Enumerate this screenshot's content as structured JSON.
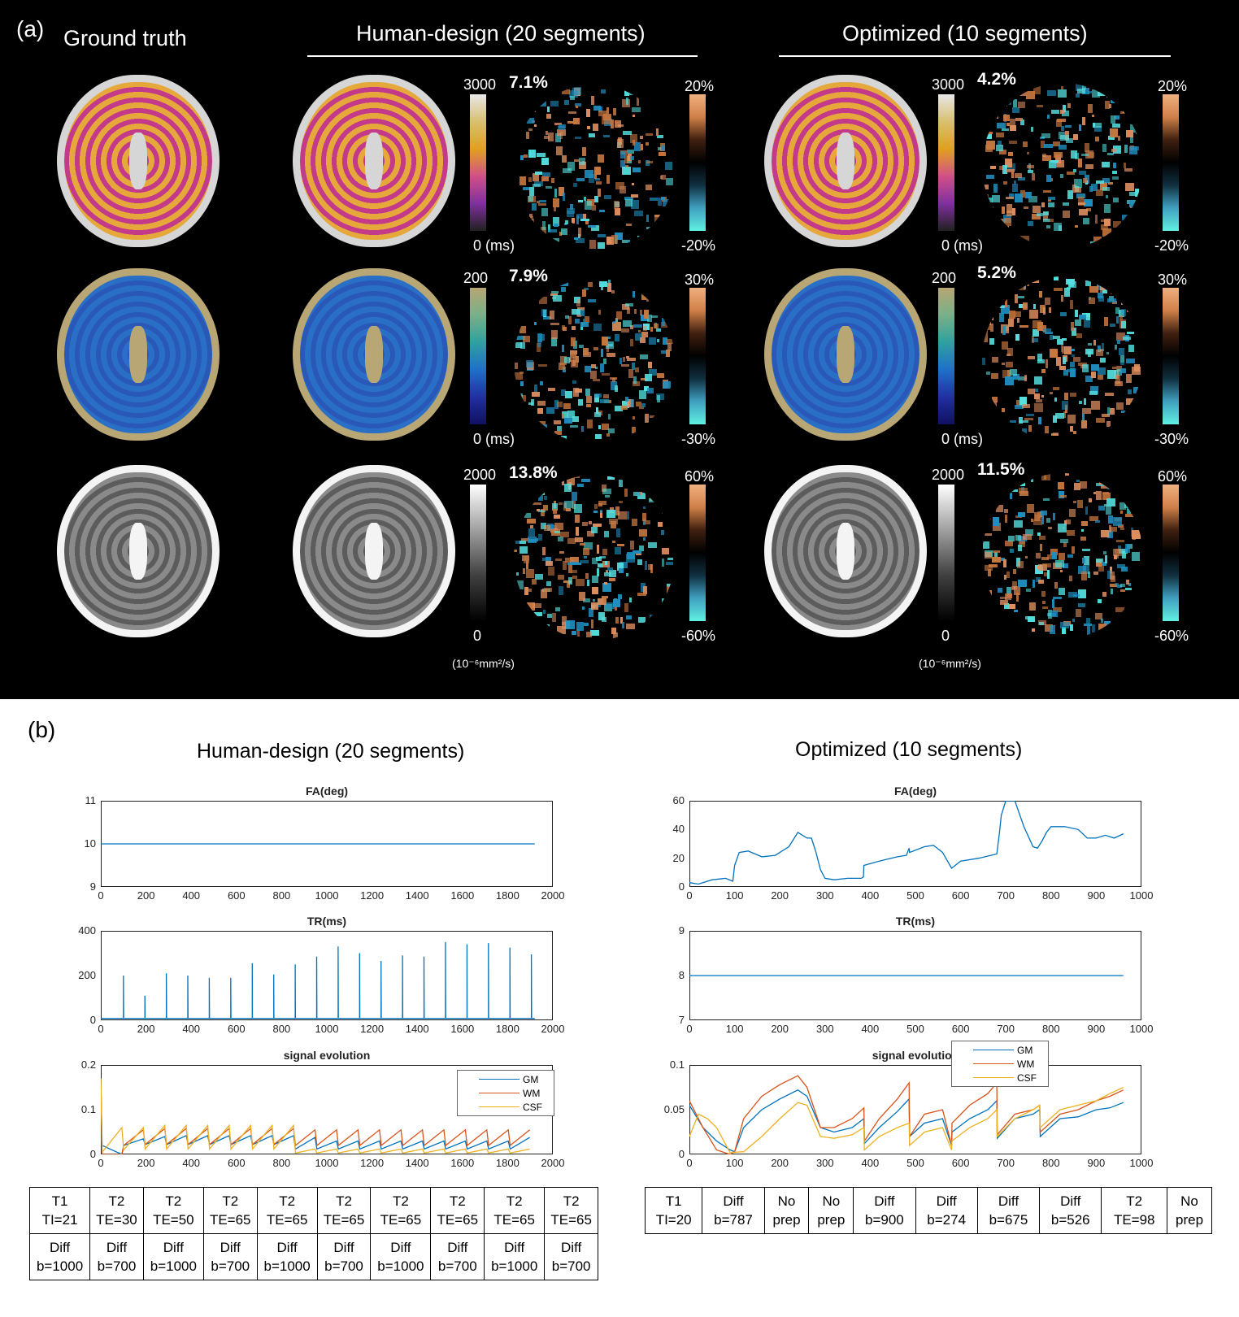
{
  "panel_a": {
    "label": "(a)",
    "ground_truth_title": "Ground truth",
    "human_title": "Human-design (20 segments)",
    "optimized_title": "Optimized (10 segments)",
    "rows": [
      {
        "map_colors": [
          "#d6d6d6",
          "#e6a83a",
          "#c43a8a"
        ],
        "cb_max": "3000",
        "cb_min": "0 (ms)",
        "human_err": "7.1%",
        "opt_err": "4.2%",
        "err_max": "20%",
        "err_min": "-20%"
      },
      {
        "map_colors": [
          "#b8a674",
          "#2a6fc6",
          "#2a58b8"
        ],
        "cb_max": "200",
        "cb_min": "0 (ms)",
        "human_err": "7.9%",
        "opt_err": "5.2%",
        "err_max": "30%",
        "err_min": "-30%"
      },
      {
        "map_colors": [
          "#f4f4f4",
          "#8a8a8a",
          "#5c5c5c"
        ],
        "cb_max": "2000",
        "cb_min": "0",
        "human_err": "13.8%",
        "opt_err": "11.5%",
        "err_max": "60%",
        "err_min": "-60%",
        "unit": "(10⁻⁶mm²/s)"
      }
    ]
  },
  "panel_b": {
    "label": "(b)",
    "human_title": "Human-design (20 segments)",
    "optimized_title": "Optimized (10 segments)",
    "legend": [
      "GM",
      "WM",
      "CSF"
    ],
    "series_colors": {
      "GM": "#0072bd",
      "WM": "#d95319",
      "CSF": "#edb120"
    },
    "chart_data": [
      {
        "type": "line",
        "title": "FA(deg)",
        "xlim": [
          0,
          2000
        ],
        "ylim": [
          9,
          11
        ],
        "xticks": [
          0,
          200,
          400,
          600,
          800,
          1000,
          1200,
          1400,
          1600,
          1800,
          2000
        ],
        "yticks": [
          9,
          10,
          11
        ],
        "series": [
          {
            "x": [
              0,
              1920
            ],
            "y": [
              10,
              10
            ]
          }
        ]
      },
      {
        "type": "line",
        "title": "TR(ms)",
        "xlim": [
          0,
          2000
        ],
        "ylim": [
          0,
          400
        ],
        "xticks": [
          0,
          200,
          400,
          600,
          800,
          1000,
          1200,
          1400,
          1600,
          1800,
          2000
        ],
        "yticks": [
          0,
          200,
          400
        ],
        "baseline": 8,
        "spikes": [
          [
            100,
            200
          ],
          [
            195,
            110
          ],
          [
            290,
            210
          ],
          [
            385,
            200
          ],
          [
            480,
            190
          ],
          [
            575,
            190
          ],
          [
            670,
            255
          ],
          [
            765,
            205
          ],
          [
            860,
            250
          ],
          [
            955,
            285
          ],
          [
            1050,
            330
          ],
          [
            1145,
            300
          ],
          [
            1240,
            265
          ],
          [
            1335,
            290
          ],
          [
            1430,
            285
          ],
          [
            1525,
            350
          ],
          [
            1620,
            340
          ],
          [
            1715,
            345
          ],
          [
            1810,
            325
          ],
          [
            1905,
            295
          ]
        ]
      },
      {
        "type": "line",
        "title": "signal evolution",
        "xlim": [
          0,
          2000
        ],
        "ylim": [
          0,
          0.2
        ],
        "xticks": [
          0,
          200,
          400,
          600,
          800,
          1000,
          1200,
          1400,
          1600,
          1800,
          2000
        ],
        "yticks": [
          0,
          0.1,
          0.2
        ],
        "legend_position": "top-right",
        "seg_length": 95,
        "series": [
          {
            "name": "GM",
            "start": 0.17,
            "lows": [
              0.02,
              0.02,
              0.022,
              0.022,
              0.022,
              0.022,
              0.022,
              0.022,
              0.022,
              0.012,
              0.012,
              0.012,
              0.012,
              0.012,
              0.012,
              0.012,
              0.012,
              0.012,
              0.012,
              0.012
            ],
            "highs": [
              0.0,
              0.035,
              0.04,
              0.042,
              0.042,
              0.042,
              0.042,
              0.042,
              0.042,
              0.038,
              0.03,
              0.03,
              0.03,
              0.03,
              0.03,
              0.03,
              0.03,
              0.03,
              0.03,
              0.038
            ]
          },
          {
            "name": "WM",
            "start": 0.17,
            "lows": [
              0.0,
              0.02,
              0.022,
              0.022,
              0.022,
              0.022,
              0.022,
              0.022,
              0.022,
              0.02,
              0.02,
              0.02,
              0.02,
              0.02,
              0.02,
              0.02,
              0.02,
              0.02,
              0.02,
              0.02
            ],
            "highs": [
              0.0,
              0.055,
              0.058,
              0.058,
              0.058,
              0.058,
              0.058,
              0.058,
              0.058,
              0.055,
              0.055,
              0.055,
              0.055,
              0.055,
              0.055,
              0.055,
              0.055,
              0.055,
              0.055,
              0.055
            ]
          },
          {
            "name": "CSF",
            "start": 0.17,
            "lows": [
              0.005,
              0.01,
              0.012,
              0.012,
              0.012,
              0.012,
              0.012,
              0.012,
              0.012,
              0.003,
              0.003,
              0.003,
              0.003,
              0.003,
              0.003,
              0.003,
              0.003,
              0.003,
              0.003,
              0.003
            ],
            "highs": [
              0.06,
              0.06,
              0.065,
              0.065,
              0.065,
              0.065,
              0.065,
              0.065,
              0.065,
              0.012,
              0.012,
              0.012,
              0.012,
              0.012,
              0.012,
              0.012,
              0.012,
              0.012,
              0.012,
              0.012
            ]
          }
        ]
      },
      {
        "type": "line",
        "title": "FA(deg)",
        "xlim": [
          0,
          1000
        ],
        "ylim": [
          0,
          60
        ],
        "xticks": [
          0,
          100,
          200,
          300,
          400,
          500,
          600,
          700,
          800,
          900,
          1000
        ],
        "yticks": [
          0,
          20,
          40,
          60
        ],
        "series": [
          {
            "x": [
              0,
              20,
              50,
              80,
              96,
              100,
              110,
              130,
              160,
              190,
              220,
              240,
              250,
              260,
              270,
              280,
              290,
              300,
              320,
              350,
              380,
              385,
              386,
              420,
              460,
              480,
              486,
              487,
              520,
              540,
              560,
              580,
              600,
              640,
              680,
              686,
              690,
              700,
              720,
              740,
              760,
              770,
              780,
              790,
              800,
              830,
              860,
              880,
              900,
              920,
              940,
              960
            ],
            "y": [
              3,
              2,
              5,
              6,
              4,
              15,
              24,
              25,
              21,
              22,
              28,
              38,
              36,
              34,
              34,
              24,
              12,
              6,
              5,
              6,
              6,
              7,
              15,
              18,
              21,
              22,
              27,
              24,
              28,
              29,
              24,
              13,
              18,
              20,
              23,
              38,
              50,
              60,
              60,
              42,
              28,
              27,
              32,
              38,
              42,
              42,
              40,
              34,
              34,
              36,
              34,
              37
            ]
          }
        ]
      },
      {
        "type": "line",
        "title": "TR(ms)",
        "xlim": [
          0,
          1000
        ],
        "ylim": [
          7,
          9
        ],
        "xticks": [
          0,
          100,
          200,
          300,
          400,
          500,
          600,
          700,
          800,
          900,
          1000
        ],
        "yticks": [
          7,
          8,
          9
        ],
        "series": [
          {
            "x": [
              0,
              960
            ],
            "y": [
              8,
              8
            ]
          }
        ]
      },
      {
        "type": "line",
        "title": "signal evolution",
        "xlim": [
          0,
          1000
        ],
        "ylim": [
          0,
          0.1
        ],
        "xticks": [
          0,
          100,
          200,
          300,
          400,
          500,
          600,
          700,
          800,
          900,
          1000
        ],
        "yticks": [
          0,
          0.05,
          0.1
        ],
        "legend_position": "top-right",
        "series": [
          {
            "name": "GM",
            "x": [
              0,
              30,
              60,
              90,
              100,
              120,
              160,
              200,
              240,
              260,
              290,
              320,
              360,
              386,
              387,
              420,
              460,
              486,
              487,
              520,
              560,
              580,
              581,
              620,
              660,
              680,
              681,
              720,
              760,
              775,
              776,
              820,
              860,
              900,
              930,
              960
            ],
            "y": [
              0.055,
              0.03,
              0.015,
              0.005,
              0.003,
              0.03,
              0.05,
              0.062,
              0.072,
              0.065,
              0.03,
              0.025,
              0.03,
              0.04,
              0.012,
              0.03,
              0.048,
              0.062,
              0.02,
              0.035,
              0.04,
              0.01,
              0.025,
              0.04,
              0.05,
              0.06,
              0.018,
              0.04,
              0.045,
              0.05,
              0.02,
              0.04,
              0.042,
              0.05,
              0.052,
              0.058
            ]
          },
          {
            "name": "WM",
            "x": [
              0,
              30,
              60,
              90,
              100,
              120,
              160,
              200,
              240,
              260,
              290,
              320,
              360,
              386,
              387,
              420,
              460,
              486,
              487,
              520,
              560,
              580,
              581,
              620,
              660,
              680,
              681,
              720,
              760,
              775,
              776,
              820,
              860,
              900,
              930,
              960
            ],
            "y": [
              0.06,
              0.03,
              0.005,
              0.0,
              0.003,
              0.04,
              0.065,
              0.078,
              0.088,
              0.075,
              0.03,
              0.03,
              0.04,
              0.052,
              0.015,
              0.04,
              0.062,
              0.08,
              0.02,
              0.045,
              0.05,
              0.01,
              0.035,
              0.055,
              0.068,
              0.08,
              0.022,
              0.045,
              0.05,
              0.055,
              0.025,
              0.045,
              0.05,
              0.06,
              0.065,
              0.072
            ]
          },
          {
            "name": "CSF",
            "x": [
              0,
              20,
              40,
              60,
              90,
              120,
              160,
              200,
              240,
              260,
              290,
              320,
              360,
              386,
              387,
              420,
              460,
              486,
              487,
              520,
              560,
              580,
              581,
              620,
              660,
              680,
              681,
              720,
              760,
              775,
              776,
              820,
              860,
              900,
              930,
              960
            ],
            "y": [
              0.02,
              0.045,
              0.04,
              0.03,
              0.002,
              0.003,
              0.02,
              0.04,
              0.058,
              0.055,
              0.02,
              0.018,
              0.022,
              0.03,
              0.005,
              0.02,
              0.03,
              0.035,
              0.01,
              0.025,
              0.03,
              0.005,
              0.015,
              0.03,
              0.04,
              0.05,
              0.02,
              0.04,
              0.05,
              0.055,
              0.03,
              0.05,
              0.055,
              0.06,
              0.068,
              0.075
            ]
          }
        ]
      }
    ],
    "human_table": {
      "row1": [
        "T1\nTI=21",
        "T2\nTE=30",
        "T2\nTE=50",
        "T2\nTE=65",
        "T2\nTE=65",
        "T2\nTE=65",
        "T2\nTE=65",
        "T2\nTE=65",
        "T2\nTE=65",
        "T2\nTE=65"
      ],
      "row2": [
        "Diff\nb=1000",
        "Diff\nb=700",
        "Diff\nb=1000",
        "Diff\nb=700",
        "Diff\nb=1000",
        "Diff\nb=700",
        "Diff\nb=1000",
        "Diff\nb=700",
        "Diff\nb=1000",
        "Diff\nb=700"
      ]
    },
    "opt_table": {
      "row1": [
        "T1\nTI=20",
        "Diff\nb=787",
        "No\nprep",
        "No\nprep",
        "Diff\nb=900",
        "Diff\nb=274",
        "Diff\nb=675",
        "Diff\nb=526",
        "T2\nTE=98",
        "No\nprep"
      ]
    }
  }
}
